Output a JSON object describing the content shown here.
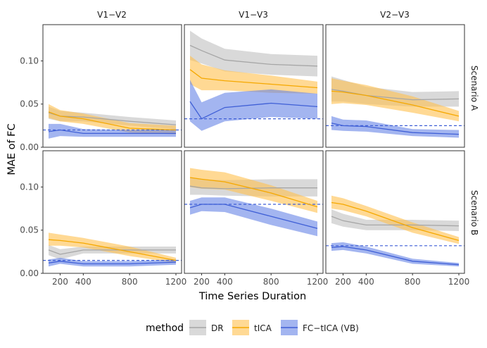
{
  "chart_data": {
    "type": "line",
    "ylabel": "MAE of FC",
    "xlabel": "Time Series Duration",
    "xlim": [
      100,
      1200
    ],
    "ylim": [
      0,
      0.142
    ],
    "x_ticks": [
      200,
      400,
      800,
      1200
    ],
    "y_ticks": [
      0.0,
      0.05,
      0.1
    ],
    "y_tick_labels": [
      "0.00",
      "0.05",
      "0.10"
    ],
    "columns": [
      "V1−V2",
      "V1−V3",
      "V2−V3"
    ],
    "rows": [
      "Scenario A",
      "Scenario B"
    ],
    "legend": {
      "title": "method",
      "position": "bottom",
      "entries": [
        {
          "key": "DR",
          "label": "DR",
          "line": "#a6a6a6",
          "fill": "#bfbfbf"
        },
        {
          "key": "tICA",
          "label": "tICA",
          "line": "#f5a800",
          "fill": "#ffc04d"
        },
        {
          "key": "FC",
          "label": "FC−tICA (VB)",
          "line": "#3f5fd6",
          "fill": "#6683e6"
        }
      ]
    },
    "x": [
      100,
      200,
      400,
      800,
      1200
    ],
    "panels": [
      {
        "row": 0,
        "col": 0,
        "reference": 0.02,
        "series": {
          "DR": {
            "mean": [
              0.04,
              0.036,
              0.035,
              0.03,
              0.026
            ],
            "lower": [
              0.033,
              0.03,
              0.03,
              0.025,
              0.021
            ],
            "upper": [
              0.047,
              0.042,
              0.04,
              0.035,
              0.031
            ]
          },
          "tICA": {
            "mean": [
              0.041,
              0.036,
              0.033,
              0.022,
              0.02
            ],
            "lower": [
              0.034,
              0.03,
              0.027,
              0.017,
              0.015
            ],
            "upper": [
              0.05,
              0.043,
              0.039,
              0.028,
              0.025
            ]
          },
          "FC": {
            "mean": [
              0.018,
              0.02,
              0.016,
              0.016,
              0.016
            ],
            "lower": [
              0.01,
              0.013,
              0.012,
              0.012,
              0.012
            ],
            "upper": [
              0.027,
              0.027,
              0.021,
              0.02,
              0.021
            ]
          }
        }
      },
      {
        "row": 0,
        "col": 1,
        "reference": 0.033,
        "series": {
          "DR": {
            "mean": [
              0.118,
              0.112,
              0.101,
              0.096,
              0.094
            ],
            "lower": [
              0.101,
              0.097,
              0.088,
              0.084,
              0.082
            ],
            "upper": [
              0.135,
              0.126,
              0.114,
              0.108,
              0.106
            ]
          },
          "tICA": {
            "mean": [
              0.09,
              0.08,
              0.077,
              0.073,
              0.069
            ],
            "lower": [
              0.073,
              0.066,
              0.066,
              0.063,
              0.062
            ],
            "upper": [
              0.106,
              0.096,
              0.089,
              0.083,
              0.076
            ]
          },
          "FC": {
            "mean": [
              0.053,
              0.033,
              0.046,
              0.051,
              0.047
            ],
            "lower": [
              0.03,
              0.019,
              0.03,
              0.035,
              0.033
            ],
            "upper": [
              0.078,
              0.052,
              0.063,
              0.067,
              0.062
            ]
          }
        }
      },
      {
        "row": 0,
        "col": 2,
        "reference": 0.025,
        "series": {
          "DR": {
            "mean": [
              0.067,
              0.065,
              0.06,
              0.055,
              0.056
            ],
            "lower": [
              0.053,
              0.053,
              0.05,
              0.047,
              0.047
            ],
            "upper": [
              0.082,
              0.078,
              0.07,
              0.064,
              0.065
            ]
          },
          "tICA": {
            "mean": [
              0.065,
              0.064,
              0.06,
              0.049,
              0.036
            ],
            "lower": [
              0.05,
              0.051,
              0.049,
              0.04,
              0.03
            ],
            "upper": [
              0.08,
              0.077,
              0.072,
              0.059,
              0.042
            ]
          },
          "FC": {
            "mean": [
              0.028,
              0.025,
              0.024,
              0.017,
              0.015
            ],
            "lower": [
              0.02,
              0.019,
              0.018,
              0.013,
              0.011
            ],
            "upper": [
              0.036,
              0.032,
              0.031,
              0.021,
              0.02
            ]
          }
        }
      },
      {
        "row": 1,
        "col": 0,
        "reference": 0.015,
        "series": {
          "DR": {
            "mean": [
              0.027,
              0.022,
              0.027,
              0.027,
              0.027
            ],
            "lower": [
              0.021,
              0.016,
              0.023,
              0.023,
              0.023
            ],
            "upper": [
              0.033,
              0.028,
              0.031,
              0.031,
              0.031
            ]
          },
          "tICA": {
            "mean": [
              0.039,
              0.038,
              0.035,
              0.025,
              0.015
            ],
            "lower": [
              0.032,
              0.032,
              0.03,
              0.02,
              0.012
            ],
            "upper": [
              0.047,
              0.045,
              0.041,
              0.031,
              0.018
            ]
          },
          "FC": {
            "mean": [
              0.012,
              0.014,
              0.011,
              0.011,
              0.013
            ],
            "lower": [
              0.008,
              0.011,
              0.008,
              0.008,
              0.01
            ],
            "upper": [
              0.016,
              0.018,
              0.014,
              0.014,
              0.016
            ]
          }
        }
      },
      {
        "row": 1,
        "col": 1,
        "reference": 0.08,
        "series": {
          "DR": {
            "mean": [
              0.101,
              0.099,
              0.098,
              0.099,
              0.099
            ],
            "lower": [
              0.091,
              0.091,
              0.09,
              0.089,
              0.089
            ],
            "upper": [
              0.111,
              0.109,
              0.108,
              0.109,
              0.109
            ]
          },
          "tICA": {
            "mean": [
              0.111,
              0.109,
              0.106,
              0.093,
              0.077
            ],
            "lower": [
              0.1,
              0.098,
              0.097,
              0.084,
              0.07
            ],
            "upper": [
              0.122,
              0.12,
              0.117,
              0.102,
              0.084
            ]
          },
          "FC": {
            "mean": [
              0.076,
              0.08,
              0.08,
              0.066,
              0.052
            ],
            "lower": [
              0.068,
              0.072,
              0.071,
              0.056,
              0.043
            ],
            "upper": [
              0.084,
              0.088,
              0.088,
              0.075,
              0.06
            ]
          }
        }
      },
      {
        "row": 1,
        "col": 2,
        "reference": 0.032,
        "series": {
          "DR": {
            "mean": [
              0.066,
              0.061,
              0.056,
              0.056,
              0.055
            ],
            "lower": [
              0.058,
              0.054,
              0.05,
              0.05,
              0.049
            ],
            "upper": [
              0.074,
              0.069,
              0.062,
              0.062,
              0.061
            ]
          },
          "tICA": {
            "mean": [
              0.082,
              0.08,
              0.072,
              0.053,
              0.038
            ],
            "lower": [
              0.075,
              0.073,
              0.066,
              0.047,
              0.034
            ],
            "upper": [
              0.09,
              0.087,
              0.078,
              0.059,
              0.042
            ]
          },
          "FC": {
            "mean": [
              0.03,
              0.031,
              0.027,
              0.014,
              0.01
            ],
            "lower": [
              0.026,
              0.027,
              0.023,
              0.011,
              0.008
            ],
            "upper": [
              0.035,
              0.036,
              0.031,
              0.017,
              0.012
            ]
          }
        }
      }
    ]
  }
}
